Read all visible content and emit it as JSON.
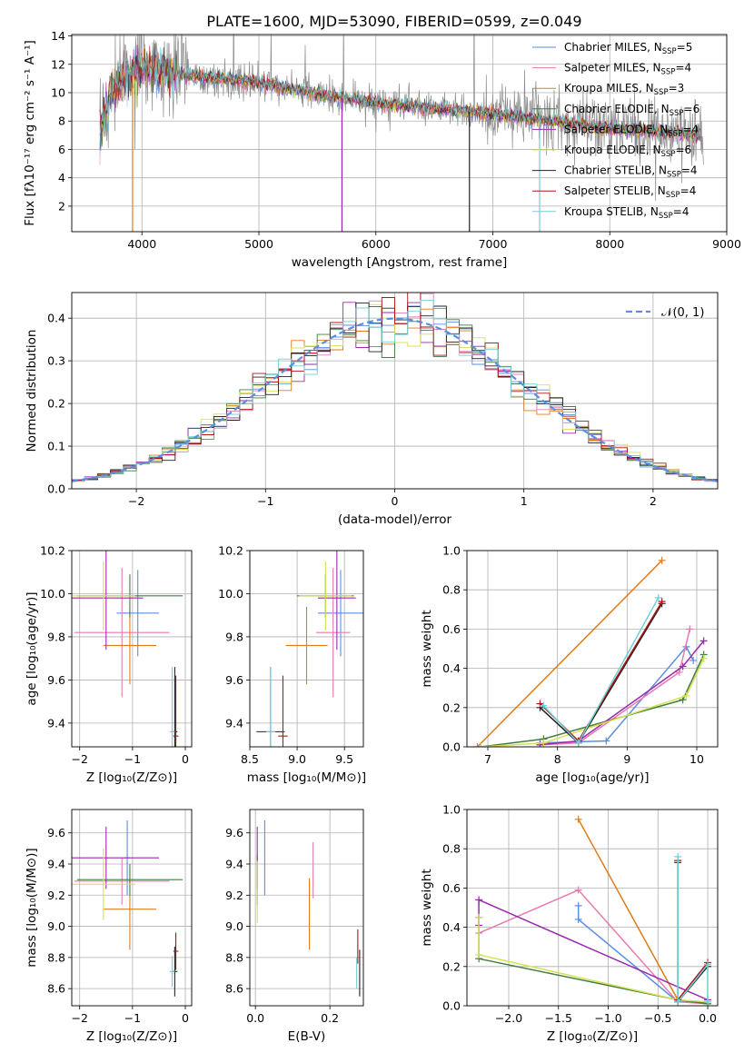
{
  "figure_title": "PLATE=1600, MJD=53090, FIBERID=0599, z=0.049",
  "legend": [
    {
      "label": "Chabrier MILES, N",
      "sub": "SSP",
      "tail": "=5",
      "color": "#5b8ee0"
    },
    {
      "label": "Salpeter MILES, N",
      "sub": "SSP",
      "tail": "=4",
      "color": "#e87ab0"
    },
    {
      "label": "Kroupa MILES, N",
      "sub": "SSP",
      "tail": "=3",
      "color": "#e07b1a"
    },
    {
      "label": "Chabrier ELODIE, N",
      "sub": "SSP",
      "tail": "=6",
      "color": "#3f7f3f"
    },
    {
      "label": "Salpeter ELODIE, N",
      "sub": "SSP",
      "tail": "=4",
      "color": "#9a2ab0"
    },
    {
      "label": "Kroupa ELODIE, N",
      "sub": "SSP",
      "tail": "=6",
      "color": "#d8e050"
    },
    {
      "label": "Chabrier STELIB, N",
      "sub": "SSP",
      "tail": "=4",
      "color": "#222222"
    },
    {
      "label": "Salpeter STELIB, N",
      "sub": "SSP",
      "tail": "=4",
      "color": "#b01515"
    },
    {
      "label": "Kroupa STELIB, N",
      "sub": "SSP",
      "tail": "=4",
      "color": "#6fd0d8"
    }
  ],
  "colors": {
    "data_gray": "#8c8c8c",
    "grid": "#b0b0b0",
    "normal_curve": "#5b8ee0"
  },
  "chart_data": [
    {
      "id": "spectrum",
      "type": "line",
      "xlabel": "wavelength [Angstrom, rest frame]",
      "ylabel": "Flux [fλ10⁻¹⁷ erg cm⁻² s⁻¹ A⁻¹]",
      "xlim": [
        3400,
        9000
      ],
      "ylim": [
        0.2,
        14.1
      ],
      "xticks": [
        4000,
        5000,
        6000,
        7000,
        8000,
        9000
      ],
      "yticks": [
        2,
        4,
        6,
        8,
        10,
        12,
        14
      ],
      "continuum": {
        "x": [
          3650,
          3750,
          3900,
          4000,
          4100,
          4300,
          4500,
          5000,
          5500,
          6000,
          6500,
          7000,
          7500,
          8000,
          8500,
          8800
        ],
        "y": [
          7.8,
          10.2,
          11.2,
          11.8,
          11.7,
          11.3,
          11.1,
          10.7,
          9.9,
          9.3,
          8.9,
          8.5,
          8.0,
          7.5,
          7.2,
          6.9
        ]
      },
      "masked_drops": [
        3920,
        5710,
        6800,
        7400
      ]
    },
    {
      "id": "residuals",
      "type": "histogram",
      "xlabel": "(data-model)/error",
      "ylabel": "Normed distribution",
      "xlim": [
        -2.5,
        2.5
      ],
      "ylim": [
        0,
        0.46
      ],
      "xticks": [
        -2,
        -1,
        0,
        1,
        2
      ],
      "yticks": [
        0.0,
        0.1,
        0.2,
        0.3,
        0.4
      ],
      "bin_width": 0.1,
      "reference": {
        "label": "𝒩(0, 1)",
        "mean": 0,
        "sigma": 1
      }
    },
    {
      "id": "age_vs_Z",
      "type": "errorbar",
      "xlabel": "Z [log₁₀(Z/Z⊙)]",
      "ylabel": "age  [log₁₀(age/yr)]",
      "xlim": [
        -2.15,
        0.12
      ],
      "ylim": [
        9.29,
        10.2
      ],
      "xticks": [
        -2,
        -1,
        0
      ],
      "yticks": [
        9.4,
        9.6,
        9.8,
        10.0,
        10.2
      ],
      "points": [
        {
          "s": 0,
          "x": -0.9,
          "y": 9.91,
          "xe": 0.4,
          "ye": 0.2
        },
        {
          "s": 1,
          "x": -1.2,
          "y": 9.82,
          "xe": 0.9,
          "ye": 0.3
        },
        {
          "s": 2,
          "x": -1.05,
          "y": 9.76,
          "xe": 0.5,
          "ye": 0.18
        },
        {
          "s": 3,
          "x": -1.05,
          "y": 9.99,
          "xe": 1.0,
          "ye": 0.1
        },
        {
          "s": 4,
          "x": -1.5,
          "y": 9.98,
          "xe": 0.7,
          "ye": 0.24
        },
        {
          "s": 5,
          "x": -1.55,
          "y": 9.99,
          "xe": 0.6,
          "ye": 0.16
        },
        {
          "s": 6,
          "x": -0.2,
          "y": 9.36,
          "xe": 0.05,
          "ye": 0.3
        },
        {
          "s": 7,
          "x": -0.18,
          "y": 9.34,
          "xe": 0.05,
          "ye": 0.28
        },
        {
          "s": 8,
          "x": -0.25,
          "y": 9.36,
          "xe": 0.05,
          "ye": 0.3
        }
      ]
    },
    {
      "id": "age_vs_mass",
      "type": "errorbar",
      "xlabel": "mass [log₁₀(M/M⊙)]",
      "ylabel": "",
      "xlim": [
        8.5,
        9.7
      ],
      "ylim": [
        9.29,
        10.2
      ],
      "xticks": [
        8.5,
        9.0,
        9.5
      ],
      "yticks": [
        9.4,
        9.6,
        9.8,
        10.0,
        10.2
      ],
      "points": [
        {
          "s": 0,
          "x": 9.46,
          "y": 9.91,
          "xe": 0.24,
          "ye": 0.2
        },
        {
          "s": 1,
          "x": 9.38,
          "y": 9.82,
          "xe": 0.18,
          "ye": 0.3
        },
        {
          "s": 2,
          "x": 9.1,
          "y": 9.76,
          "xe": 0.22,
          "ye": 0.18
        },
        {
          "s": 3,
          "x": 9.3,
          "y": 9.99,
          "xe": 0.3,
          "ye": 0.1
        },
        {
          "s": 4,
          "x": 9.42,
          "y": 9.98,
          "xe": 0.2,
          "ye": 0.24
        },
        {
          "s": 5,
          "x": 9.3,
          "y": 9.99,
          "xe": 0.28,
          "ye": 0.16
        },
        {
          "s": 6,
          "x": 8.72,
          "y": 9.36,
          "xe": 0.15,
          "ye": 0.3
        },
        {
          "s": 7,
          "x": 8.85,
          "y": 9.34,
          "xe": 0.05,
          "ye": 0.28
        },
        {
          "s": 8,
          "x": 8.72,
          "y": 9.36,
          "xe": 0.05,
          "ye": 0.3
        }
      ]
    },
    {
      "id": "weight_vs_age",
      "type": "line",
      "xlabel": "age  [log₁₀(age/yr)]",
      "ylabel": "mass weight",
      "xlim": [
        6.7,
        10.3
      ],
      "ylim": [
        0,
        1.0
      ],
      "xticks": [
        7,
        8,
        9,
        10
      ],
      "yticks": [
        0.0,
        0.2,
        0.4,
        0.6,
        0.8,
        1.0
      ],
      "series": [
        {
          "s": 0,
          "x": [
            7.75,
            8.7,
            9.85,
            9.95
          ],
          "y": [
            0.02,
            0.03,
            0.51,
            0.44
          ]
        },
        {
          "s": 1,
          "x": [
            7.75,
            8.3,
            9.75,
            9.9
          ],
          "y": [
            0.01,
            0.02,
            0.38,
            0.6
          ]
        },
        {
          "s": 2,
          "x": [
            6.85,
            9.5
          ],
          "y": [
            0.0,
            0.95
          ]
        },
        {
          "s": 3,
          "x": [
            6.9,
            7.8,
            9.8,
            10.1
          ],
          "y": [
            0.0,
            0.04,
            0.24,
            0.47
          ]
        },
        {
          "s": 4,
          "x": [
            7.75,
            8.3,
            9.8,
            10.1
          ],
          "y": [
            0.01,
            0.03,
            0.41,
            0.54
          ]
        },
        {
          "s": 5,
          "x": [
            6.9,
            7.8,
            9.85,
            10.1
          ],
          "y": [
            0.0,
            0.02,
            0.26,
            0.45
          ]
        },
        {
          "s": 6,
          "x": [
            7.75,
            8.3,
            9.5
          ],
          "y": [
            0.2,
            0.02,
            0.73
          ]
        },
        {
          "s": 7,
          "x": [
            7.75,
            8.3,
            9.5
          ],
          "y": [
            0.22,
            0.03,
            0.74
          ]
        },
        {
          "s": 8,
          "x": [
            7.8,
            8.3,
            9.45
          ],
          "y": [
            0.21,
            0.02,
            0.76
          ]
        }
      ]
    },
    {
      "id": "mass_vs_Z",
      "type": "errorbar",
      "xlabel": "Z [log₁₀(Z/Z⊙)]",
      "ylabel": "mass [log₁₀(M/M⊙)]",
      "xlim": [
        -2.15,
        0.12
      ],
      "ylim": [
        8.49,
        9.75
      ],
      "xticks": [
        -2,
        -1,
        0
      ],
      "yticks": [
        8.6,
        8.8,
        9.0,
        9.2,
        9.4,
        9.6
      ],
      "points": [
        {
          "s": 0,
          "x": -1.1,
          "y": 9.44,
          "xe": 0.05,
          "ye": 0.24
        },
        {
          "s": 1,
          "x": -1.2,
          "y": 9.29,
          "xe": 0.9,
          "ye": 0.15
        },
        {
          "s": 2,
          "x": -1.05,
          "y": 9.11,
          "xe": 0.5,
          "ye": 0.26
        },
        {
          "s": 3,
          "x": -1.05,
          "y": 9.3,
          "xe": 1.0,
          "ye": 0.1
        },
        {
          "s": 4,
          "x": -1.5,
          "y": 9.44,
          "xe": 1.0,
          "ye": 0.2
        },
        {
          "s": 5,
          "x": -1.55,
          "y": 9.27,
          "xe": 0.6,
          "ye": 0.23
        },
        {
          "s": 6,
          "x": -0.2,
          "y": 8.71,
          "xe": 0.05,
          "ye": 0.16
        },
        {
          "s": 7,
          "x": -0.18,
          "y": 8.84,
          "xe": 0.05,
          "ye": 0.12
        },
        {
          "s": 8,
          "x": -0.25,
          "y": 8.71,
          "xe": 0.05,
          "ye": 0.1
        }
      ]
    },
    {
      "id": "mass_vs_ebv",
      "type": "errorbar",
      "xlabel": "E(B-V)",
      "ylabel": "",
      "xlim": [
        -0.015,
        0.29
      ],
      "ylim": [
        8.49,
        9.75
      ],
      "xticks": [
        0.0,
        0.2
      ],
      "yticks": [
        8.6,
        8.8,
        9.0,
        9.2,
        9.4,
        9.6
      ],
      "points": [
        {
          "s": 0,
          "x": 0.025,
          "y": 9.44,
          "xe": 0,
          "ye": 0.24
        },
        {
          "s": 1,
          "x": 0.155,
          "y": 9.36,
          "xe": 0,
          "ye": 0.18
        },
        {
          "s": 2,
          "x": 0.145,
          "y": 9.08,
          "xe": 0,
          "ye": 0.23
        },
        {
          "s": 3,
          "x": 0.005,
          "y": 9.3,
          "xe": 0,
          "ye": 0.16
        },
        {
          "s": 4,
          "x": 0.005,
          "y": 9.44,
          "xe": 0,
          "ye": 0.2
        },
        {
          "s": 5,
          "x": 0.005,
          "y": 9.22,
          "xe": 0,
          "ye": 0.2
        },
        {
          "s": 6,
          "x": 0.28,
          "y": 8.7,
          "xe": 0,
          "ye": 0.15
        },
        {
          "s": 7,
          "x": 0.275,
          "y": 8.87,
          "xe": 0,
          "ye": 0.11
        },
        {
          "s": 8,
          "x": 0.272,
          "y": 8.7,
          "xe": 0,
          "ye": 0.1
        }
      ]
    },
    {
      "id": "weight_vs_Z",
      "type": "line",
      "xlabel": "Z [log₁₀(Z/Z⊙)]",
      "ylabel": "mass weight",
      "xlim": [
        -2.42,
        0.1
      ],
      "ylim": [
        0,
        1.0
      ],
      "xticks": [
        -2.0,
        -1.5,
        -1.0,
        -0.5,
        0.0
      ],
      "yticks": [
        0.0,
        0.2,
        0.4,
        0.6,
        0.8,
        1.0
      ],
      "series": [
        {
          "s": 0,
          "x": [
            -1.3,
            -1.3,
            -0.3,
            0.0,
            0.0
          ],
          "y": [
            0.51,
            0.44,
            0.02,
            0.02,
            0.02
          ]
        },
        {
          "s": 1,
          "x": [
            -2.3,
            -1.3,
            -0.3,
            0.0
          ],
          "y": [
            0.37,
            0.59,
            0.02,
            0.01
          ]
        },
        {
          "s": 2,
          "x": [
            -1.3,
            -0.3
          ],
          "y": [
            0.95,
            0.03
          ]
        },
        {
          "s": 3,
          "x": [
            -2.3,
            -2.3,
            -0.3,
            0.0
          ],
          "y": [
            0.45,
            0.24,
            0.03,
            0.01
          ]
        },
        {
          "s": 4,
          "x": [
            -2.3,
            -2.3,
            0.0
          ],
          "y": [
            0.41,
            0.54,
            0.03
          ]
        },
        {
          "s": 5,
          "x": [
            -2.3,
            -2.3,
            -0.3,
            0.0
          ],
          "y": [
            0.45,
            0.26,
            0.03,
            0.02
          ]
        },
        {
          "s": 6,
          "x": [
            -0.3,
            -0.3,
            0.0
          ],
          "y": [
            0.73,
            0.02,
            0.2
          ]
        },
        {
          "s": 7,
          "x": [
            -0.3,
            -0.3,
            0.0
          ],
          "y": [
            0.74,
            0.03,
            0.22
          ]
        },
        {
          "s": 8,
          "x": [
            -0.3,
            -0.3,
            0.0,
            0.0
          ],
          "y": [
            0.76,
            0.02,
            0.21,
            0.02
          ]
        }
      ]
    }
  ]
}
